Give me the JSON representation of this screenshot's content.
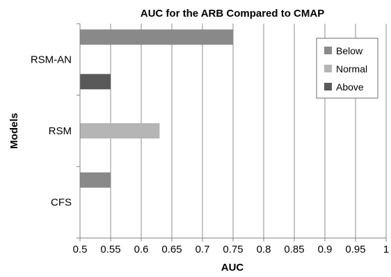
{
  "chart_data": {
    "type": "bar",
    "orientation": "horizontal",
    "title": "AUC for the ARB Compared to CMAP",
    "xlabel": "AUC",
    "ylabel": "Models",
    "xlim": [
      0.5,
      1
    ],
    "xticks": [
      0.5,
      0.55,
      0.6,
      0.65,
      0.7,
      0.75,
      0.8,
      0.85,
      0.9,
      0.95,
      1
    ],
    "xtick_labels": [
      "0.5",
      "0.55",
      "0.6",
      "0.65",
      "0.7",
      "0.75",
      "0.8",
      "0.85",
      "0.9",
      "0.95",
      "1"
    ],
    "grid": "vertical",
    "legend_position": "top-right",
    "categories": [
      "RSM-AN",
      "RSM",
      "CFS"
    ],
    "series": [
      {
        "name": "Below",
        "color": "#898989",
        "values": [
          0.75,
          null,
          0.55
        ]
      },
      {
        "name": "Normal",
        "color": "#b5b5b5",
        "values": [
          null,
          0.63,
          null
        ]
      },
      {
        "name": "Above",
        "color": "#595959",
        "values": [
          0.55,
          null,
          null
        ]
      }
    ]
  }
}
